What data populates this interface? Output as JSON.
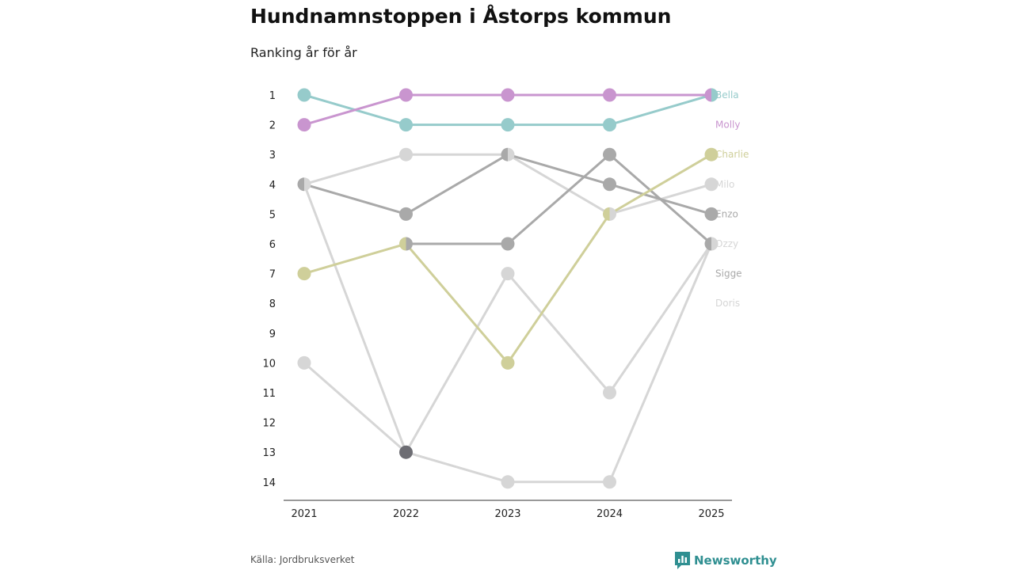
{
  "title": "Hundnamnstoppen i Åstorps kommun",
  "subtitle": "Ranking år för år",
  "source": "Källa: Jordbruksverket",
  "brand": "Newsworthy",
  "chart_data": {
    "type": "line",
    "chart_kind": "bump",
    "title": "Hundnamnstoppen i Åstorps kommun",
    "subtitle": "Ranking år för år",
    "xlabel": "",
    "ylabel": "",
    "categories": [
      "2021",
      "2022",
      "2023",
      "2024",
      "2025"
    ],
    "y_ticks": [
      "1",
      "2",
      "3",
      "4",
      "5",
      "6",
      "7",
      "8",
      "9",
      "10",
      "11",
      "12",
      "13",
      "14"
    ],
    "ylim": [
      1,
      14
    ],
    "y_reversed": true,
    "legend_position": "right end labels",
    "series": [
      {
        "name": "Doris",
        "color": "#d6d6d6",
        "values": [
          10,
          13,
          14,
          14,
          6
        ]
      },
      {
        "name": "Sigge",
        "color": "#d6d6d6",
        "values": [
          4,
          13,
          7,
          11,
          6
        ]
      },
      {
        "name": "Milo",
        "color": "#d6d6d6",
        "values": [
          4,
          3,
          3,
          5,
          4
        ]
      },
      {
        "name": "Ozzy",
        "color": "#a9a9a9",
        "values": [
          null,
          6,
          6,
          3,
          6
        ]
      },
      {
        "name": "Enzo",
        "color": "#a9a9a9",
        "values": [
          4,
          5,
          3,
          4,
          5
        ]
      },
      {
        "name": "Charlie",
        "color": "#cfcf9a",
        "values": [
          7,
          6,
          10,
          5,
          3
        ]
      },
      {
        "name": "Bella",
        "color": "#96cbcb",
        "values": [
          1,
          2,
          2,
          2,
          1
        ]
      },
      {
        "name": "Molly",
        "color": "#c995cf",
        "values": [
          2,
          1,
          1,
          1,
          1
        ]
      }
    ],
    "label_order": [
      "Bella",
      "Molly",
      "Charlie",
      "Milo",
      "Enzo",
      "Ozzy",
      "Sigge",
      "Doris"
    ],
    "label_colors": {
      "Bella": "#96cbcb",
      "Molly": "#c995cf",
      "Charlie": "#cfcf9a",
      "Milo": "#d6d6d6",
      "Enzo": "#a9a9a9",
      "Ozzy": "#d6d6d6",
      "Sigge": "#a9a9a9",
      "Doris": "#d6d6d6"
    },
    "overlap_color": "#6d6d73"
  }
}
